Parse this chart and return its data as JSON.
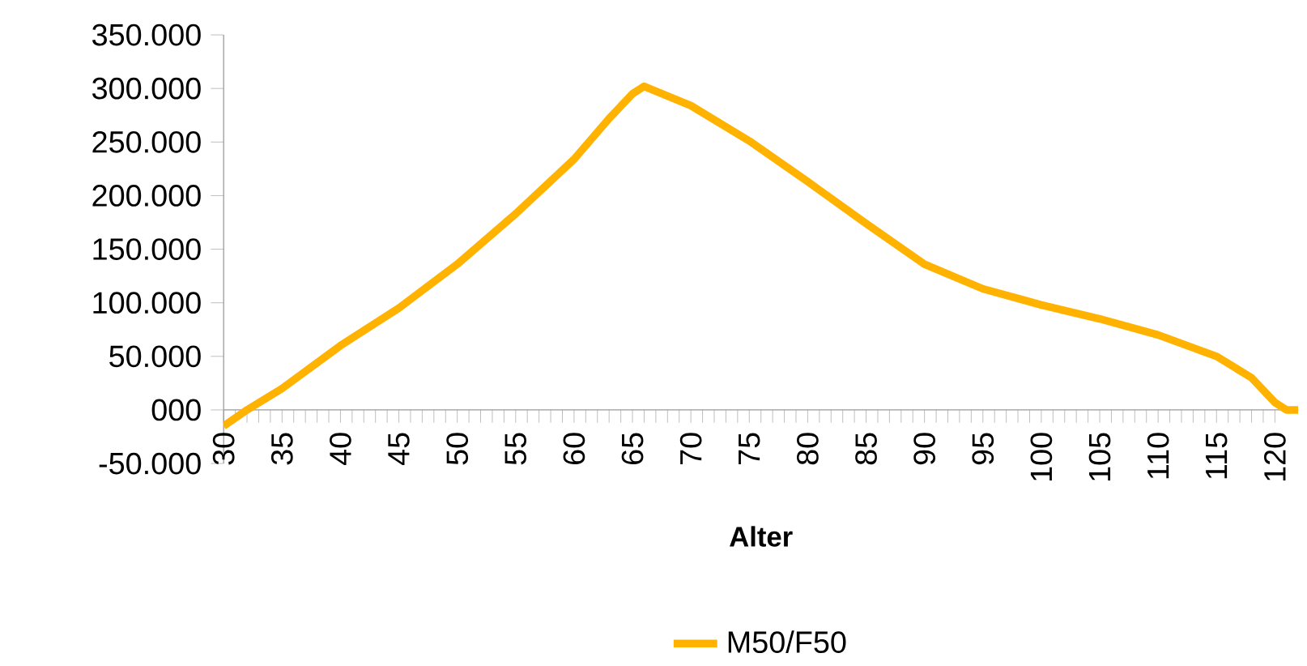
{
  "chart_data": {
    "type": "line",
    "xlabel": "Alter",
    "x": [
      30,
      32,
      35,
      40,
      45,
      50,
      55,
      60,
      63,
      65,
      66,
      70,
      75,
      80,
      85,
      90,
      95,
      100,
      105,
      110,
      115,
      118,
      120,
      121,
      122
    ],
    "series": [
      {
        "name": "M50/F50",
        "color": "#ffb300",
        "values": [
          -15000,
          0,
          20000,
          60000,
          95000,
          136000,
          183000,
          234000,
          272000,
          295000,
          302000,
          284000,
          251000,
          213000,
          174000,
          136000,
          113000,
          98000,
          85000,
          70000,
          50000,
          30000,
          7000,
          0,
          0
        ]
      }
    ],
    "xlim": [
      30,
      122
    ],
    "xticks": [
      30,
      35,
      40,
      45,
      50,
      55,
      60,
      65,
      70,
      75,
      80,
      85,
      90,
      95,
      100,
      105,
      110,
      115,
      120
    ],
    "ylim": [
      -50000,
      350000
    ],
    "yticks": [
      {
        "value": -50000,
        "label": "-50.000"
      },
      {
        "value": 0,
        "label": "000"
      },
      {
        "value": 50000,
        "label": "50.000"
      },
      {
        "value": 100000,
        "label": "100.000"
      },
      {
        "value": 150000,
        "label": "150.000"
      },
      {
        "value": 200000,
        "label": "200.000"
      },
      {
        "value": 250000,
        "label": "250.000"
      },
      {
        "value": 300000,
        "label": "300.000"
      },
      {
        "value": 350000,
        "label": "350.000"
      }
    ],
    "legend": "bottom",
    "marker": "none",
    "line_style": "solid"
  }
}
